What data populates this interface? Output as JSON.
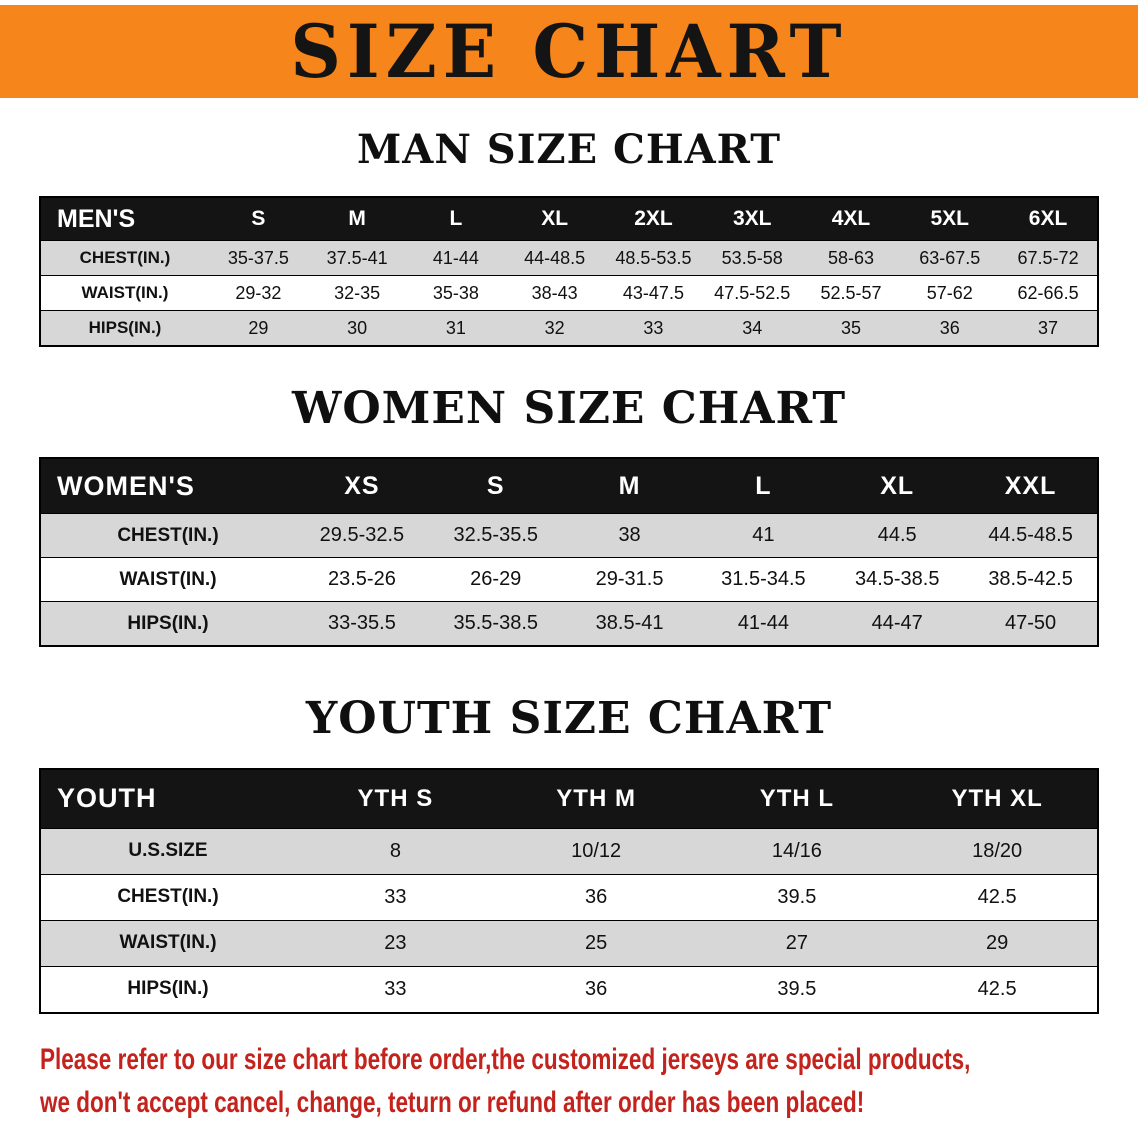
{
  "banner": {
    "title": "SIZE CHART"
  },
  "sections": {
    "men": {
      "heading": "MAN SIZE CHART",
      "table": {
        "header": [
          "MEN'S",
          "S",
          "M",
          "L",
          "XL",
          "2XL",
          "3XL",
          "4XL",
          "5XL",
          "6XL"
        ],
        "rows": [
          [
            "CHEST(IN.)",
            "35-37.5",
            "37.5-41",
            "41-44",
            "44-48.5",
            "48.5-53.5",
            "53.5-58",
            "58-63",
            "63-67.5",
            "67.5-72"
          ],
          [
            "WAIST(IN.)",
            "29-32",
            "32-35",
            "35-38",
            "38-43",
            "43-47.5",
            "47.5-52.5",
            "52.5-57",
            "57-62",
            "62-66.5"
          ],
          [
            "HIPS(IN.)",
            "29",
            "30",
            "31",
            "32",
            "33",
            "34",
            "35",
            "36",
            "37"
          ]
        ]
      }
    },
    "women": {
      "heading": "WOMEN SIZE CHART",
      "table": {
        "header": [
          "WOMEN'S",
          "XS",
          "S",
          "M",
          "L",
          "XL",
          "XXL"
        ],
        "rows": [
          [
            "CHEST(IN.)",
            "29.5-32.5",
            "32.5-35.5",
            "38",
            "41",
            "44.5",
            "44.5-48.5"
          ],
          [
            "WAIST(IN.)",
            "23.5-26",
            "26-29",
            "29-31.5",
            "31.5-34.5",
            "34.5-38.5",
            "38.5-42.5"
          ],
          [
            "HIPS(IN.)",
            "33-35.5",
            "35.5-38.5",
            "38.5-41",
            "41-44",
            "44-47",
            "47-50"
          ]
        ]
      }
    },
    "youth": {
      "heading": "YOUTH SIZE CHART",
      "table": {
        "header": [
          "YOUTH",
          "YTH S",
          "YTH M",
          "YTH L",
          "YTH XL"
        ],
        "rows": [
          [
            "U.S.SIZE",
            "8",
            "10/12",
            "14/16",
            "18/20"
          ],
          [
            "CHEST(IN.)",
            "33",
            "36",
            "39.5",
            "42.5"
          ],
          [
            "WAIST(IN.)",
            "23",
            "25",
            "27",
            "29"
          ],
          [
            "HIPS(IN.)",
            "33",
            "36",
            "39.5",
            "42.5"
          ]
        ]
      }
    }
  },
  "disclaimer": {
    "line1": "Please refer to our size chart before order,the customized jerseys are special products,",
    "line2": "we don't accept cancel, change, teturn or refund after order has been placed!"
  },
  "colors": {
    "banner_orange": "#f6861c",
    "table_header_black": "#141414",
    "row_gray": "#d7d7d7",
    "disclaimer_red": "#c4221c"
  }
}
